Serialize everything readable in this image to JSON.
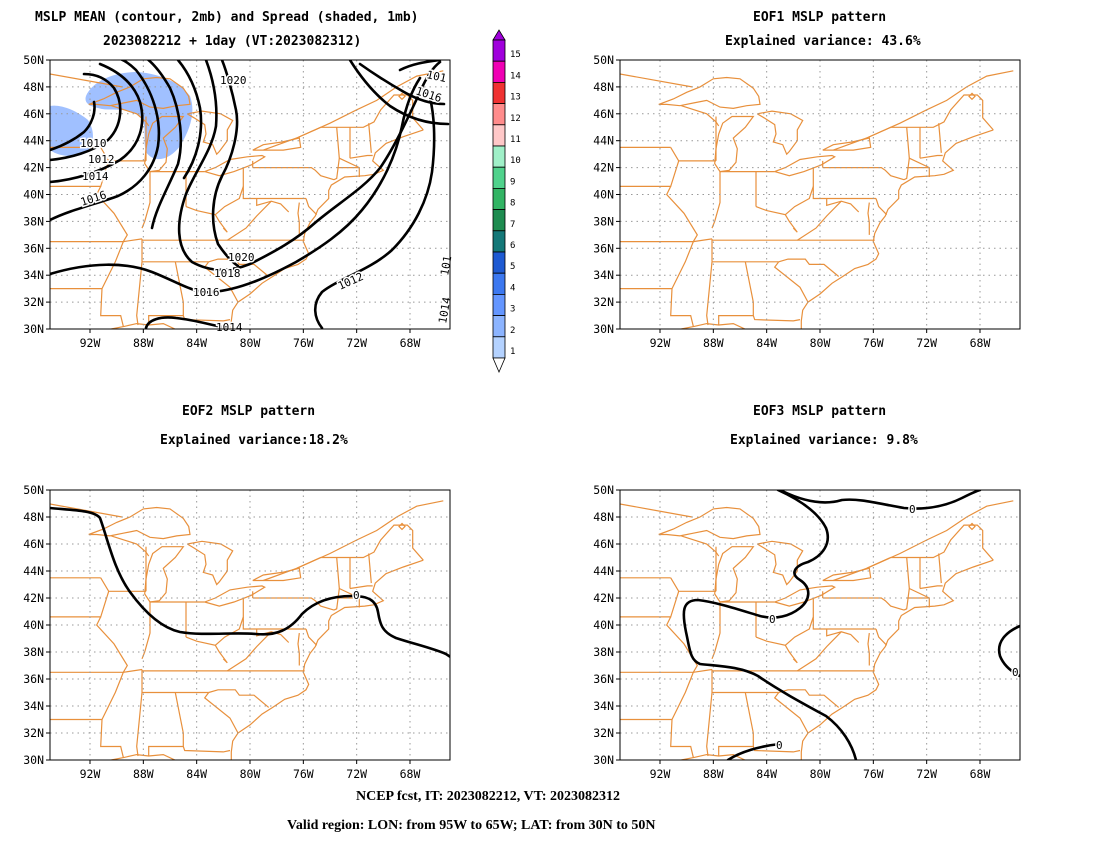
{
  "panels": {
    "mean": {
      "title_line1": "MSLP MEAN (contour, 2mb) and Spread (shaded, 1mb)",
      "title_line2": "2023082212 + 1day (VT:2023082312)"
    },
    "eof1": {
      "title_line1": "EOF1 MSLP pattern",
      "title_line2": "Explained variance: 43.6%"
    },
    "eof2": {
      "title_line1": "EOF2 MSLP pattern",
      "title_line2": "Explained variance:18.2%"
    },
    "eof3": {
      "title_line1": "EOF3 MSLP pattern",
      "title_line2": "Explained variance: 9.8%"
    }
  },
  "axes": {
    "lat_labels": [
      "30N",
      "32N",
      "34N",
      "36N",
      "38N",
      "40N",
      "42N",
      "44N",
      "46N",
      "48N",
      "50N"
    ],
    "lon_labels": [
      "92W",
      "88W",
      "84W",
      "80W",
      "76W",
      "72W",
      "68W"
    ]
  },
  "colorbar": {
    "levels": [
      "1",
      "2",
      "3",
      "4",
      "5",
      "6",
      "7",
      "8",
      "9",
      "10",
      "11",
      "12",
      "13",
      "14",
      "15"
    ],
    "colors": [
      "#b4d2ff",
      "#8cb4ff",
      "#6496ff",
      "#3c78f0",
      "#1e5ad2",
      "#147878",
      "#1e8c50",
      "#32b464",
      "#50d28c",
      "#a0f0c8",
      "#ffc8c8",
      "#ff8c8c",
      "#f03232",
      "#f000b4",
      "#a000dc"
    ]
  },
  "mean_contour_labels": [
    "1010",
    "1012",
    "1014",
    "1016",
    "1020",
    "1018",
    "1016",
    "1012",
    "1020",
    "1016",
    "1014",
    "101",
    "1014",
    "101"
  ],
  "eof_zero_label": "0",
  "colors": {
    "map": "#e8903c",
    "contour": "#000000",
    "spread": "#a0c0ff",
    "grid": "#999999"
  },
  "footer": {
    "line1": "NCEP fcst, IT: 2023082212, VT: 2023082312",
    "line2": "Valid region: LON: from 95W to 65W; LAT: from 30N to 50N"
  }
}
